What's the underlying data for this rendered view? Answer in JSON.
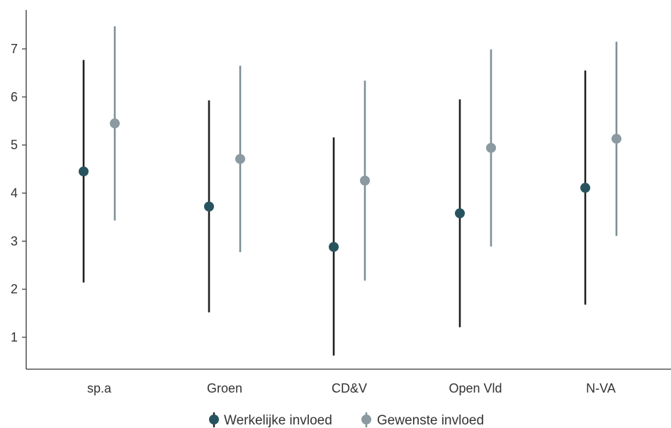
{
  "chart_data": {
    "type": "scatter",
    "subtype": "point-range",
    "title": "",
    "xlabel": "",
    "ylabel": "",
    "ylim": [
      0.3,
      7.8
    ],
    "yticks": [
      1,
      2,
      3,
      4,
      5,
      6,
      7
    ],
    "grid": false,
    "legend_position": "bottom",
    "categories": [
      "sp.a",
      "Groen",
      "CD&V",
      "Open Vld",
      "N-VA"
    ],
    "series": [
      {
        "name": "Werkelijke invloed",
        "color": "#27535e",
        "line_color": "#1f1f1f",
        "values": [
          4.45,
          3.72,
          2.88,
          3.58,
          4.11
        ],
        "low": [
          2.14,
          1.52,
          0.62,
          1.21,
          1.68
        ],
        "high": [
          6.77,
          5.93,
          5.16,
          5.95,
          6.55
        ]
      },
      {
        "name": "Gewenste invloed",
        "color": "#8a9aa0",
        "line_color": "#7f8f95",
        "values": [
          5.45,
          4.71,
          4.26,
          4.94,
          5.13
        ],
        "low": [
          3.43,
          2.77,
          2.18,
          2.89,
          3.11
        ],
        "high": [
          7.47,
          6.65,
          6.34,
          6.99,
          7.15
        ]
      }
    ]
  }
}
